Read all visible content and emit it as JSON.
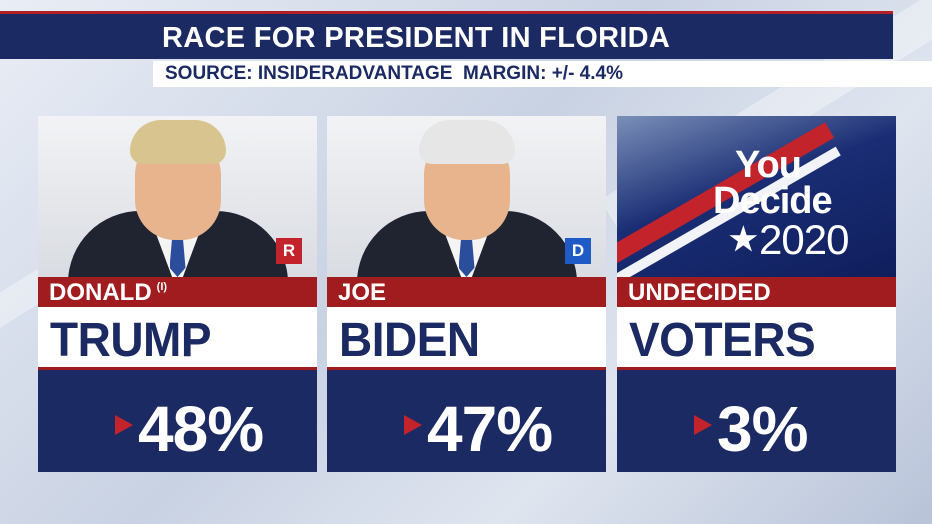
{
  "header": {
    "title": "RACE FOR PRESIDENT IN FLORIDA",
    "source": "SOURCE: INSIDERADVANTAGE  MARGIN: +/- 4.4%"
  },
  "cards": [
    {
      "first_name": "DONALD",
      "incumbent_mark": "(I)",
      "last_name": "TRUMP",
      "party": "R",
      "party_color": "#c3232a",
      "percent": "48%",
      "hair_color": "#d8c48f"
    },
    {
      "first_name": "JOE",
      "last_name": "BIDEN",
      "party": "D",
      "party_color": "#1f5bc6",
      "percent": "47%",
      "hair_color": "#e6e6e6"
    },
    {
      "first_name": "UNDECIDED",
      "last_name": "VOTERS",
      "percent": "3%"
    }
  ],
  "logo": {
    "line1": "You",
    "line2": "Decide",
    "star": "★",
    "year": "2020"
  },
  "colors": {
    "navy": "#1c2a63",
    "red": "#a01c1f"
  }
}
